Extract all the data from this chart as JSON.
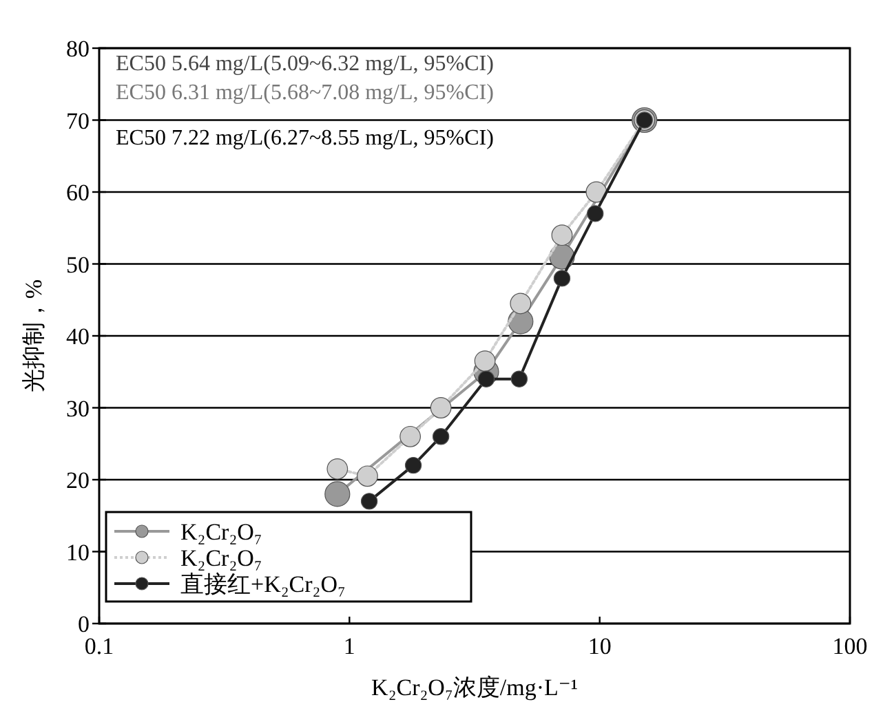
{
  "chart_data": {
    "type": "line",
    "xlabel": "K₂Cr₂O₇浓度/mg·L⁻¹",
    "ylabel": "光抑制，%",
    "annotations": [
      "EC50 5.64 mg/L(5.09~6.32 mg/L, 95%CI)",
      "EC50 6.31 mg/L(5.68~7.08 mg/L, 95%CI)",
      "EC50 7.22 mg/L(6.27~8.55 mg/L, 95%CI)"
    ],
    "series": [
      {
        "name": "K₂Cr₂O₇",
        "color": "#999999",
        "line_style": "solid",
        "x": [
          0.895,
          3.52,
          4.83,
          7.07,
          15.1
        ],
        "values": [
          18,
          35,
          42,
          51,
          70
        ]
      },
      {
        "name": "K₂Cr₂O₇",
        "color": "#cfcfcf",
        "line_style": "dotted",
        "x": [
          0.895,
          1.18,
          1.75,
          2.32,
          3.48,
          4.83,
          7.07,
          9.7,
          15.1
        ],
        "values": [
          21.5,
          20.5,
          26,
          30,
          36.5,
          44.5,
          54,
          60,
          70
        ]
      },
      {
        "name": "直接红+K₂Cr₂O₇",
        "color": "#222222",
        "line_style": "solid",
        "x": [
          1.2,
          1.8,
          2.32,
          3.52,
          4.77,
          7.07,
          9.6,
          15.1
        ],
        "values": [
          17,
          22,
          26,
          34,
          34,
          48,
          57,
          70
        ]
      }
    ],
    "log": "x",
    "xlim": [
      0.1,
      100
    ],
    "xticks": [
      0.1,
      1,
      10,
      100
    ],
    "ylim": [
      0,
      80
    ],
    "yticks": [
      0,
      10,
      20,
      30,
      40,
      50,
      60,
      70,
      80
    ],
    "grid": "y",
    "legend": "bottom left",
    "marker": "circle"
  }
}
